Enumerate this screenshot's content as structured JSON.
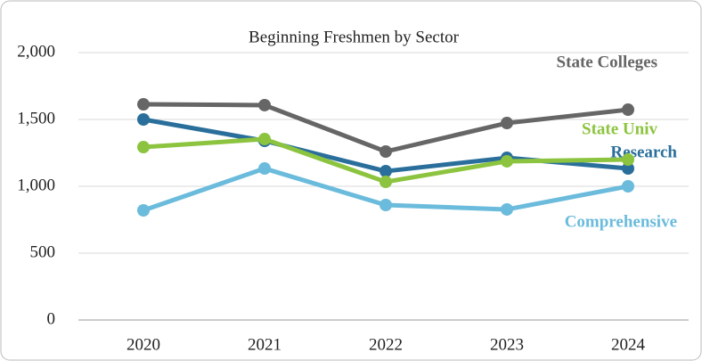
{
  "chart_data": {
    "type": "line",
    "title": "Beginning Freshmen by Sector",
    "categories": [
      "2020",
      "2021",
      "2022",
      "2023",
      "2024"
    ],
    "series": [
      {
        "name": "State Colleges",
        "color": "#666666",
        "values": [
          1613,
          1607,
          1260,
          1473,
          1573
        ]
      },
      {
        "name": "Research",
        "color": "#2a6f9b",
        "values": [
          1500,
          1340,
          1113,
          1213,
          1133
        ]
      },
      {
        "name": "State Univ",
        "color": "#8cc43f",
        "values": [
          1293,
          1353,
          1033,
          1187,
          1200
        ]
      },
      {
        "name": "Comprehensive",
        "color": "#6bbbdc",
        "values": [
          820,
          1133,
          860,
          827,
          1000
        ]
      }
    ],
    "ylim": [
      0,
      2000
    ],
    "yticks": [
      0,
      500,
      {
        "value": 1000,
        "label": "1,000"
      },
      {
        "value": 1500,
        "label": "1,500"
      },
      {
        "value": 2000,
        "label": "2,000"
      }
    ],
    "grid": true
  }
}
